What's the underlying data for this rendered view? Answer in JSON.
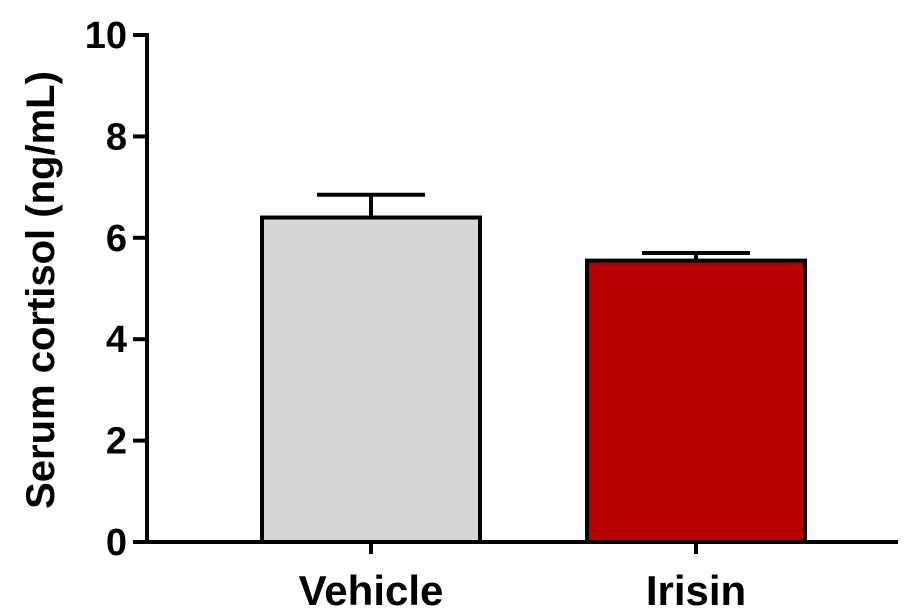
{
  "chart_data": {
    "type": "bar",
    "title": "",
    "xlabel": "",
    "ylabel": "Serum cortisol (ng/mL)",
    "categories": [
      "Vehicle",
      "Irisin"
    ],
    "values": [
      6.4,
      5.55
    ],
    "error_upper": [
      6.85,
      5.7
    ],
    "colors": [
      "#d6d6d6",
      "#b80000"
    ],
    "ylim": [
      0,
      10
    ],
    "yticks": [
      0,
      2,
      4,
      6,
      8,
      10
    ],
    "grid": false,
    "legend": "none"
  }
}
